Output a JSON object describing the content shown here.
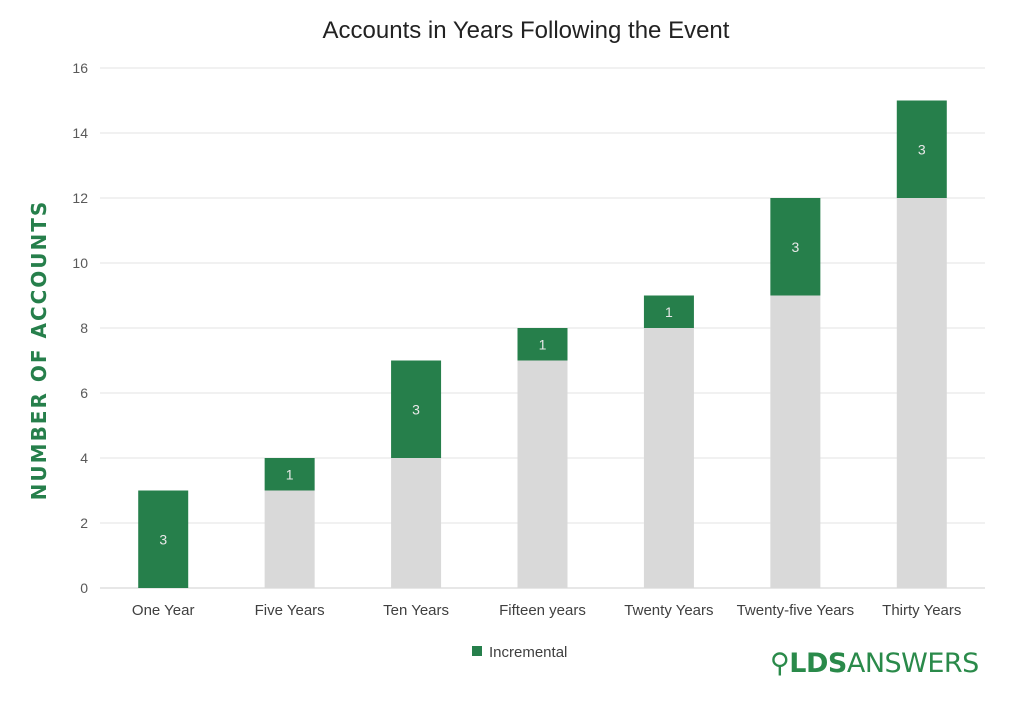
{
  "chart_data": {
    "type": "stacked-bar",
    "title": "Accounts in Years Following the Event",
    "xlabel": "",
    "ylabel": "NUMBER OF ACCOUNTS",
    "ylim": [
      0,
      16
    ],
    "yticks": [
      0,
      2,
      4,
      6,
      8,
      10,
      12,
      14,
      16
    ],
    "grid": true,
    "legend": "bottom",
    "categories": [
      "One Year",
      "Five Years",
      "Ten Years",
      "Fifteen years",
      "Twenty Years",
      "Twenty-five Years",
      "Thirty Years"
    ],
    "series": [
      {
        "values": [
          0,
          3,
          4,
          7,
          8,
          9,
          12
        ],
        "color": "#d9d9d9"
      },
      {
        "name": "Incremental",
        "values": [
          3,
          1,
          3,
          1,
          1,
          3,
          3
        ],
        "color": "#267f4b",
        "data_labels": true
      }
    ]
  },
  "logo": {
    "prefix": "LDS",
    "suffix": "ANSWERS",
    "badge": "real",
    "color": "#2a8a4a"
  }
}
